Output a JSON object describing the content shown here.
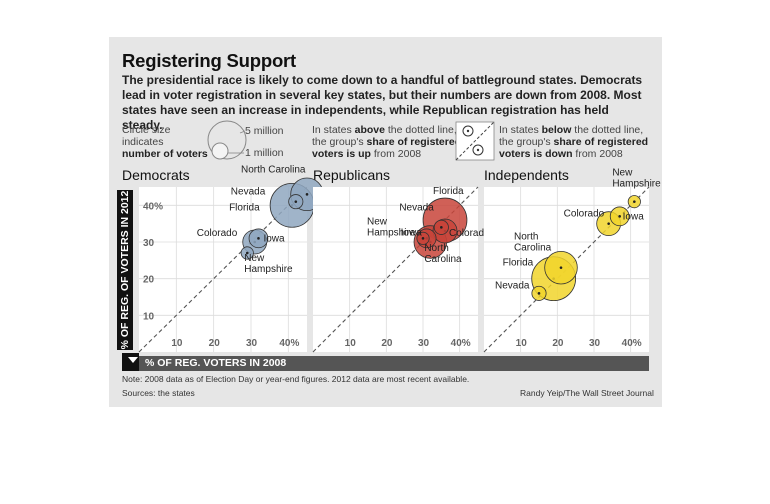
{
  "title": "Registering Support",
  "intro": "The presidential race is likely to come down to a handful of battleground states. Democrats lead in voter registration in several key states, but their numbers are down from 2008. Most states have seen an increase in independents, while Republican registration has held steady.",
  "legend_size": {
    "line1": "Circle size",
    "line2": "indicates",
    "line3": "number of voters",
    "big": "5 million",
    "small": "1 million"
  },
  "legend_above": {
    "line1_a": "In states ",
    "line1_b": "above",
    "line1_c": " the dotted line,",
    "line2_a": "the group's ",
    "line2_b": "share of registered",
    "line3_a": "voters is up",
    "line3_b": " from 2008"
  },
  "legend_below": {
    "line1_a": "In states ",
    "line1_b": "below",
    "line1_c": " the dotted line,",
    "line2_a": "the group's ",
    "line2_b": "share of registered",
    "line3_a": "voters is down",
    "line3_b": " from 2008"
  },
  "y_axis_label": "% OF REG. OF VOTERS IN 2012",
  "x_axis_label": "% OF REG. VOTERS IN 2008",
  "note": "Note: 2008 data as of Election Day or year-end figures. 2012 data are most recent available.",
  "sources": "Sources: the states",
  "credit": "Randy Yeip/The Wall Street Journal",
  "colors": {
    "democrats": "#8fa7bf",
    "republicans": "#c8443a",
    "independents": "#f1d52c"
  },
  "chart_data": [
    {
      "type": "scatter",
      "title": "Democrats",
      "xlim": [
        0,
        45
      ],
      "ylim": [
        0,
        45
      ],
      "x_ticks": [
        "10",
        "20",
        "30",
        "40%"
      ],
      "y_ticks": [
        "10",
        "20",
        "30",
        "40%"
      ],
      "series": [
        {
          "points": [
            {
              "label": "North Carolina",
              "x": 45,
              "y": 43,
              "voters_millions": 6.3
            },
            {
              "label": "Nevada",
              "x": 42,
              "y": 41,
              "voters_millions": 1.2
            },
            {
              "label": "Florida",
              "x": 41,
              "y": 40,
              "voters_millions": 11.4
            },
            {
              "label": "Colorado",
              "x": 31,
              "y": 30,
              "voters_millions": 3.4
            },
            {
              "label": "Iowa",
              "x": 32,
              "y": 31,
              "voters_millions": 2.1
            },
            {
              "label": "New Hampshire",
              "x": 29,
              "y": 27,
              "voters_millions": 0.9
            }
          ]
        }
      ]
    },
    {
      "type": "scatter",
      "title": "Republicans",
      "xlim": [
        0,
        45
      ],
      "ylim": [
        0,
        45
      ],
      "x_ticks": [
        "10",
        "20",
        "30",
        "40%"
      ],
      "y_ticks": [],
      "series": [
        {
          "points": [
            {
              "label": "Florida",
              "x": 36,
              "y": 36,
              "voters_millions": 11.4
            },
            {
              "label": "Nevada",
              "x": 35,
              "y": 34,
              "voters_millions": 1.2
            },
            {
              "label": "New Hampshire",
              "x": 30,
              "y": 31,
              "voters_millions": 0.9
            },
            {
              "label": "Iowa",
              "x": 31,
              "y": 31,
              "voters_millions": 2.1
            },
            {
              "label": "Colorado",
              "x": 36,
              "y": 33,
              "voters_millions": 3.4
            },
            {
              "label": "North Carolina",
              "x": 32,
              "y": 30,
              "voters_millions": 6.3
            }
          ]
        }
      ]
    },
    {
      "type": "scatter",
      "title": "Independents",
      "xlim": [
        0,
        45
      ],
      "ylim": [
        0,
        45
      ],
      "x_ticks": [
        "10",
        "20",
        "30",
        "40%"
      ],
      "y_ticks": [],
      "series": [
        {
          "points": [
            {
              "label": "New Hampshire",
              "x": 41,
              "y": 41,
              "voters_millions": 0.9
            },
            {
              "label": "Colorado",
              "x": 34,
              "y": 35,
              "voters_millions": 3.4
            },
            {
              "label": "Iowa",
              "x": 37,
              "y": 37,
              "voters_millions": 2.1
            },
            {
              "label": "North Carolina",
              "x": 21,
              "y": 23,
              "voters_millions": 6.3
            },
            {
              "label": "Florida",
              "x": 19,
              "y": 20,
              "voters_millions": 11.4
            },
            {
              "label": "Nevada",
              "x": 15,
              "y": 16,
              "voters_millions": 1.2
            }
          ]
        }
      ]
    }
  ]
}
